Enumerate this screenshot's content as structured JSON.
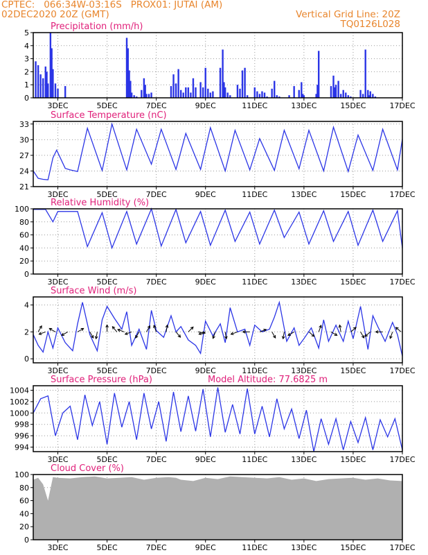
{
  "header": {
    "left_line1": "CPTEC:   066:34W-03:16S   PROX01: JUTAI (AM)",
    "left_line2": "02DEC2020 20Z (GMT)",
    "right_line1": "Vertical Grid Line: 20Z",
    "right_line2": "TQ0126L028",
    "model_altitude": "Model Altitude: 77.6825 m"
  },
  "colors": {
    "header": "#e8852c",
    "title": "#e0207a",
    "series": "#2b35e6",
    "cloud": "#b0b0b0"
  },
  "chart_data": [
    {
      "id": "precip",
      "type": "bar",
      "title": "Precipitation (mm/h)",
      "x_tick_labels": [
        "3DEC",
        "5DEC",
        "7DEC",
        "9DEC",
        "11DEC",
        "13DEC",
        "15DEC",
        "17DEC"
      ],
      "ylim": [
        0,
        5
      ],
      "yticks": [
        "0",
        "1",
        "2",
        "3",
        "4",
        "5"
      ],
      "x": [
        2.1,
        2.2,
        2.3,
        2.4,
        2.5,
        2.55,
        2.6,
        2.7,
        2.75,
        2.8,
        2.9,
        3.0,
        3.3,
        5.8,
        5.85,
        5.9,
        5.95,
        6.0,
        6.1,
        6.2,
        6.4,
        6.5,
        6.55,
        6.6,
        6.7,
        6.8,
        7.6,
        7.7,
        7.8,
        7.9,
        8.0,
        8.1,
        8.2,
        8.3,
        8.4,
        8.5,
        8.6,
        8.8,
        8.9,
        9.0,
        9.1,
        9.2,
        9.3,
        9.6,
        9.7,
        9.75,
        9.8,
        9.9,
        10.0,
        10.3,
        10.4,
        10.5,
        10.6,
        10.7,
        11.0,
        11.1,
        11.2,
        11.3,
        11.4,
        11.5,
        11.7,
        11.8,
        11.9,
        12.0,
        12.4,
        12.6,
        12.8,
        12.9,
        12.95,
        13.0,
        13.5,
        13.55,
        13.6,
        14.1,
        14.2,
        14.25,
        14.3,
        14.4,
        14.5,
        14.6,
        14.7,
        14.8,
        14.9,
        15.3,
        15.4,
        15.5,
        15.6,
        15.65,
        15.7,
        15.8,
        15.9
      ],
      "values": [
        2.8,
        2.5,
        1.8,
        1.5,
        2.4,
        2.0,
        1.1,
        5.0,
        3.8,
        2.2,
        1.1,
        0.7,
        0.9,
        4.6,
        3.8,
        2.1,
        1.3,
        0.4,
        0.2,
        0.1,
        0.6,
        1.5,
        1.0,
        0.3,
        0.3,
        0.4,
        0.9,
        1.8,
        1.1,
        2.2,
        0.6,
        0.4,
        0.8,
        0.8,
        0.4,
        1.5,
        0.8,
        1.2,
        0.8,
        2.3,
        0.7,
        0.4,
        0.5,
        2.3,
        3.7,
        1.2,
        0.8,
        0.4,
        0.2,
        1.0,
        0.7,
        2.1,
        2.3,
        0.2,
        0.8,
        0.5,
        0.3,
        0.5,
        0.4,
        0.1,
        0.7,
        1.3,
        0.2,
        0.1,
        0.2,
        0.9,
        0.6,
        1.2,
        0.3,
        0.2,
        0.3,
        1.0,
        3.6,
        0.9,
        1.7,
        0.8,
        1.0,
        1.3,
        0.3,
        0.6,
        0.4,
        0.2,
        0.1,
        0.6,
        0.3,
        3.7,
        0.6,
        0.2,
        0.5,
        0.3,
        0.1
      ]
    },
    {
      "id": "temp",
      "type": "line",
      "title": "Surface Temperature (nC)",
      "x_tick_labels": [
        "3DEC",
        "5DEC",
        "7DEC",
        "9DEC",
        "11DEC",
        "13DEC",
        "15DEC",
        "17DEC"
      ],
      "ylim": [
        21,
        33.5
      ],
      "yticks": [
        "21",
        "24",
        "27",
        "30",
        "33"
      ],
      "x": [
        2.0,
        2.2,
        2.4,
        2.6,
        2.8,
        2.95,
        3.3,
        3.5,
        3.8,
        4.2,
        4.8,
        5.2,
        5.8,
        6.2,
        6.8,
        7.2,
        7.8,
        8.2,
        8.8,
        9.2,
        9.8,
        10.2,
        10.8,
        11.2,
        11.8,
        12.2,
        12.8,
        13.2,
        13.8,
        14.2,
        14.8,
        15.2,
        15.8,
        16.2,
        16.8,
        17.0
      ],
      "values": [
        24.0,
        22.6,
        22.4,
        22.3,
        26.5,
        28.0,
        24.5,
        24.2,
        23.9,
        32.2,
        24.1,
        33.0,
        24.2,
        32.0,
        25.3,
        32.0,
        24.3,
        31.2,
        24.3,
        32.3,
        24.0,
        31.8,
        24.2,
        30.2,
        24.1,
        31.8,
        24.4,
        31.8,
        24.0,
        32.4,
        23.9,
        30.9,
        24.1,
        32.0,
        24.2,
        30.1
      ]
    },
    {
      "id": "rh",
      "type": "line",
      "title": "Relative Humidity (%)",
      "x_tick_labels": [
        "3DEC",
        "5DEC",
        "7DEC",
        "9DEC",
        "11DEC",
        "13DEC",
        "15DEC",
        "17DEC"
      ],
      "ylim": [
        0,
        100
      ],
      "yticks": [
        "0",
        "20",
        "40",
        "60",
        "80",
        "100"
      ],
      "x": [
        2.0,
        2.3,
        2.5,
        2.8,
        3.0,
        3.3,
        3.6,
        3.8,
        4.2,
        4.8,
        5.2,
        5.8,
        6.2,
        6.8,
        7.2,
        7.8,
        8.2,
        8.8,
        9.2,
        9.8,
        10.2,
        10.8,
        11.2,
        11.8,
        12.2,
        12.8,
        13.2,
        13.8,
        14.2,
        14.8,
        15.2,
        15.8,
        16.2,
        16.8,
        17.0
      ],
      "values": [
        99,
        99,
        99,
        80,
        96,
        96,
        96,
        96,
        42,
        94,
        40,
        96,
        46,
        100,
        43,
        99,
        48,
        96,
        44,
        98,
        50,
        95,
        46,
        98,
        56,
        95,
        46,
        97,
        50,
        96,
        44,
        98,
        50,
        97,
        40
      ]
    },
    {
      "id": "wind",
      "type": "line",
      "title": "Surface Wind (m/s)",
      "x_tick_labels": [
        "3DEC",
        "5DEC",
        "7DEC",
        "9DEC",
        "11DEC",
        "13DEC",
        "15DEC",
        "17DEC"
      ],
      "ylim": [
        -0.3,
        4.6
      ],
      "yticks": [
        "0",
        "2",
        "4"
      ],
      "x": [
        2.0,
        2.2,
        2.4,
        2.6,
        2.8,
        3.0,
        3.3,
        3.6,
        3.8,
        4.0,
        4.3,
        4.6,
        4.8,
        5.0,
        5.3,
        5.6,
        5.8,
        6.0,
        6.3,
        6.6,
        6.8,
        7.0,
        7.3,
        7.6,
        7.8,
        8.0,
        8.3,
        8.6,
        8.8,
        9.0,
        9.3,
        9.6,
        9.8,
        10.0,
        10.3,
        10.6,
        10.8,
        11.0,
        11.3,
        11.6,
        11.8,
        12.0,
        12.3,
        12.6,
        12.8,
        13.0,
        13.3,
        13.6,
        13.8,
        14.0,
        14.3,
        14.6,
        14.8,
        15.0,
        15.3,
        15.6,
        15.8,
        16.0,
        16.3,
        16.6,
        16.8,
        17.0
      ],
      "values": [
        1.8,
        1.0,
        0.5,
        2.0,
        0.8,
        2.3,
        1.2,
        0.6,
        2.6,
        4.2,
        1.8,
        0.6,
        2.9,
        3.9,
        3.0,
        2.2,
        3.5,
        1.0,
        2.2,
        0.7,
        3.6,
        2.1,
        1.6,
        3.2,
        2.0,
        2.4,
        1.4,
        1.0,
        0.4,
        2.8,
        1.7,
        2.6,
        1.2,
        3.8,
        2.0,
        2.2,
        1.0,
        2.5,
        2.0,
        2.2,
        3.1,
        4.2,
        1.3,
        2.3,
        1.0,
        1.5,
        2.3,
        0.8,
        2.9,
        1.3,
        2.5,
        1.3,
        2.8,
        1.5,
        3.9,
        0.7,
        3.2,
        2.4,
        1.3,
        2.7,
        1.8,
        0.2
      ],
      "arrows_x": [
        2.2,
        2.5,
        2.9,
        3.4,
        3.8,
        4.3,
        4.6,
        5.0,
        5.4,
        5.7,
        6.0,
        6.3,
        6.6,
        7.0,
        7.4,
        7.8,
        8.3,
        8.7,
        9.0,
        9.4,
        9.8,
        10.3,
        10.8,
        11.2,
        11.7,
        12.2,
        12.6,
        13.2,
        13.6,
        14.1,
        14.5,
        14.9,
        15.3,
        15.7,
        16.2,
        16.6,
        16.95
      ],
      "arrows_angle_deg": [
        60,
        200,
        150,
        210,
        30,
        300,
        260,
        90,
        130,
        160,
        200,
        240,
        60,
        110,
        80,
        310,
        45,
        350,
        200,
        250,
        280,
        200,
        180,
        20,
        300,
        260,
        210,
        320,
        70,
        330,
        100,
        40,
        300,
        220,
        180,
        250,
        140
      ]
    },
    {
      "id": "pressure",
      "type": "line",
      "title": "Surface Pressure (hPa)",
      "x_tick_labels": [
        "3DEC",
        "5DEC",
        "7DEC",
        "9DEC",
        "11DEC",
        "13DEC",
        "15DEC",
        "17DEC"
      ],
      "ylim": [
        993.2,
        1004.8
      ],
      "yticks": [
        "994",
        "996",
        "998",
        "1000",
        "1002",
        "1004"
      ],
      "x": [
        2.0,
        2.3,
        2.6,
        2.9,
        3.2,
        3.5,
        3.8,
        4.1,
        4.4,
        4.7,
        5.0,
        5.3,
        5.6,
        5.9,
        6.2,
        6.5,
        6.8,
        7.1,
        7.4,
        7.7,
        8.0,
        8.3,
        8.6,
        8.9,
        9.2,
        9.5,
        9.8,
        10.1,
        10.4,
        10.7,
        11.0,
        11.3,
        11.6,
        11.9,
        12.2,
        12.5,
        12.8,
        13.1,
        13.4,
        13.7,
        14.0,
        14.3,
        14.6,
        14.9,
        15.2,
        15.5,
        15.8,
        16.1,
        16.4,
        16.7,
        17.0
      ],
      "values": [
        1000,
        1002.5,
        1003,
        996,
        1000,
        1001.2,
        995.3,
        1003.2,
        997.8,
        1002,
        994.5,
        1003.5,
        997.5,
        1002,
        995.3,
        1003.5,
        997.2,
        1002,
        995,
        1003.7,
        996.7,
        1003,
        996.8,
        1004.2,
        995.8,
        1004.5,
        996.6,
        1001.5,
        996.3,
        1004.3,
        996.3,
        1001.2,
        995.8,
        1002.5,
        997.2,
        1000.7,
        995.5,
        1000.5,
        993.2,
        999,
        994.5,
        999,
        993.5,
        998.5,
        994.8,
        999.2,
        993.5,
        998.8,
        995.8,
        999,
        993.5
      ]
    },
    {
      "id": "cloud",
      "type": "area",
      "title": "Cloud Cover (%)",
      "x_tick_labels": [
        "3DEC",
        "5DEC",
        "7DEC",
        "9DEC",
        "11DEC",
        "13DEC",
        "15DEC",
        "17DEC"
      ],
      "ylim": [
        0,
        100
      ],
      "yticks": [
        "0",
        "20",
        "40",
        "60",
        "80",
        "100"
      ],
      "x": [
        2.0,
        2.2,
        2.4,
        2.6,
        2.8,
        3.0,
        3.5,
        4.0,
        4.5,
        5.0,
        5.5,
        6.0,
        6.5,
        7.0,
        7.5,
        7.8,
        8.0,
        8.5,
        9.0,
        9.5,
        10.0,
        10.5,
        11.0,
        11.5,
        12.0,
        12.5,
        13.0,
        13.5,
        14.0,
        14.5,
        15.0,
        15.5,
        16.0,
        16.5,
        17.0
      ],
      "values": [
        92,
        95,
        85,
        60,
        96,
        95,
        94,
        96,
        97,
        94,
        95,
        96,
        92,
        95,
        96,
        95,
        92,
        90,
        95,
        93,
        97,
        96,
        95,
        94,
        96,
        92,
        94,
        90,
        93,
        94,
        95,
        92,
        94,
        91,
        90
      ]
    }
  ]
}
